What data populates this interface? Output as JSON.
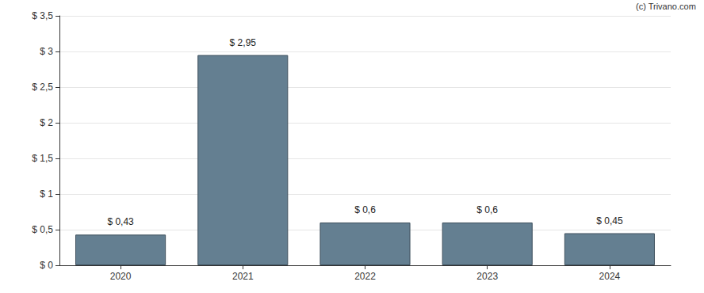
{
  "chart_data": {
    "type": "bar",
    "annotation": "(c) Trivano.com",
    "categories": [
      "2020",
      "2021",
      "2022",
      "2023",
      "2024"
    ],
    "values": [
      0.43,
      2.95,
      0.6,
      0.6,
      0.45
    ],
    "value_labels": [
      "$ 0,43",
      "$ 2,95",
      "$ 0,6",
      "$ 0,6",
      "$ 0,45"
    ],
    "data_labels": true,
    "color": "#647f91",
    "ylim": [
      0,
      3.5
    ],
    "yticks": [
      {
        "value": 0,
        "label": "$ 0"
      },
      {
        "value": 0.5,
        "label": "$ 0,5"
      },
      {
        "value": 1,
        "label": "$ 1"
      },
      {
        "value": 1.5,
        "label": "$ 1,5"
      },
      {
        "value": 2,
        "label": "$ 2"
      },
      {
        "value": 2.5,
        "label": "$ 2,5"
      },
      {
        "value": 3,
        "label": "$ 3"
      },
      {
        "value": 3.5,
        "label": "$ 3,5"
      }
    ],
    "grid": true
  }
}
